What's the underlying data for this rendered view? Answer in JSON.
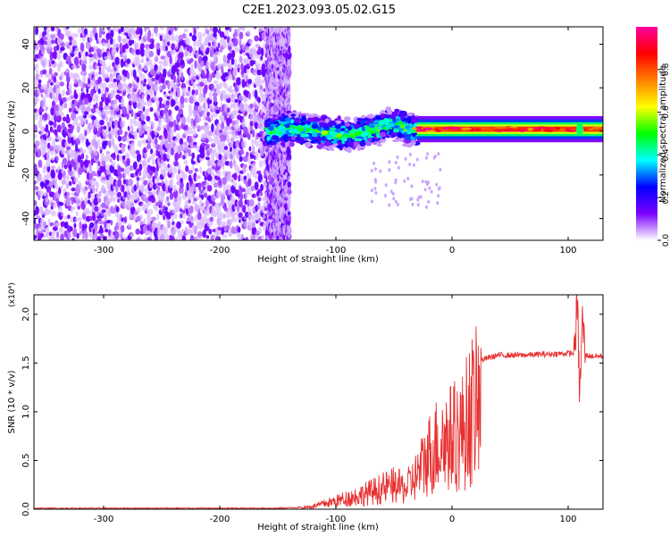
{
  "title": "C2E1.2023.093.05.02.G15",
  "chart_data": [
    {
      "type": "heatmap",
      "xlabel": "Height of straight line (km)",
      "ylabel": "Frequency (Hz)",
      "xlim": [
        -360,
        130
      ],
      "ylim": [
        -50,
        48
      ],
      "xticks": [
        -300,
        -200,
        -100,
        0,
        100
      ],
      "yticks": [
        -40,
        -20,
        0,
        20,
        40
      ],
      "colorbar": {
        "label": "Normalized spectral amplitude",
        "range": [
          0,
          1
        ],
        "ticks": [
          "0.0",
          "0.2",
          "0.4",
          "0.6",
          "0.8"
        ],
        "colors": [
          "#ffffff",
          "#7b00ff",
          "#0000ff",
          "#00ffff",
          "#00ff00",
          "#ffff00",
          "#ff8000",
          "#ff0000",
          "#ff00a0"
        ]
      },
      "regions": [
        {
          "x": [
            -360,
            -160
          ],
          "y": [
            -50,
            48
          ],
          "pattern": "noise",
          "level": 0.05
        },
        {
          "x": [
            -160,
            -140
          ],
          "y": [
            -50,
            48
          ],
          "pattern": "sparse-noise",
          "level": 0.03
        },
        {
          "x": [
            -160,
            -30
          ],
          "y": [
            -8,
            8
          ],
          "pattern": "signal-band",
          "level": 0.35
        },
        {
          "x": [
            -30,
            130
          ],
          "y": [
            -3,
            4
          ],
          "pattern": "carrier",
          "level": 0.85
        }
      ]
    },
    {
      "type": "line",
      "xlabel": "Height of straight line (km)",
      "ylabel": "SNR (10 * v/v)",
      "y_exponent": "(x10⁴)",
      "xlim": [
        -360,
        130
      ],
      "ylim": [
        0,
        2.2
      ],
      "xticks": [
        -300,
        -200,
        -100,
        0,
        100
      ],
      "yticks": [
        "0.0",
        "0.5",
        "1.0",
        "1.5",
        "2.0"
      ],
      "series": [
        {
          "color": "#e83030",
          "x": [
            -360,
            -300,
            -250,
            -200,
            -150,
            -130,
            -120,
            -100,
            -80,
            -60,
            -50,
            -40,
            -30,
            -20,
            -10,
            0,
            10,
            15,
            20,
            30,
            40,
            60,
            80,
            100,
            105,
            108,
            110,
            112,
            115,
            120,
            130
          ],
          "y": [
            0.01,
            0.01,
            0.01,
            0.01,
            0.01,
            0.02,
            0.04,
            0.12,
            0.2,
            0.3,
            0.35,
            0.3,
            0.5,
            0.8,
            1.0,
            1.05,
            1.15,
            1.4,
            1.5,
            1.55,
            1.58,
            1.58,
            1.59,
            1.6,
            1.6,
            2.1,
            1.1,
            1.95,
            1.58,
            1.57,
            1.57
          ]
        }
      ]
    }
  ]
}
